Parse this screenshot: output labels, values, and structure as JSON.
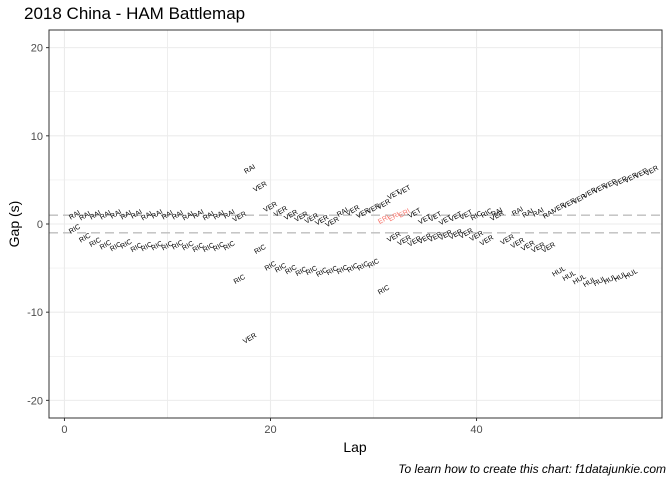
{
  "chart_data": {
    "type": "scatter",
    "title": "2018 China - HAM Battlemap",
    "caption": "To learn how to create this chart: f1datajunkie.com",
    "xlabel": "Lap",
    "ylabel": "Gap (s)",
    "xlim": [
      -1.5,
      58
    ],
    "ylim": [
      -22,
      22
    ],
    "x_ticks": [
      0,
      20,
      40
    ],
    "y_ticks": [
      -20,
      -10,
      0,
      10,
      20
    ],
    "grid": true,
    "reference_lines": [
      1,
      -1
    ],
    "colors": {
      "default": "#000000",
      "highlight": "#f8766d",
      "reference": "#bebebe",
      "grid": "#ebebeb",
      "panel_border": "#333333"
    },
    "series": [
      {
        "name": "RAI",
        "points": [
          [
            1,
            1.0
          ],
          [
            2,
            0.9
          ],
          [
            3,
            1.0
          ],
          [
            4,
            1.0
          ],
          [
            5,
            1.1
          ],
          [
            6,
            1.0
          ],
          [
            7,
            1.1
          ],
          [
            8,
            0.9
          ],
          [
            9,
            1.1
          ],
          [
            10,
            1.0
          ],
          [
            11,
            1.0
          ],
          [
            12,
            0.9
          ],
          [
            13,
            1.1
          ],
          [
            14,
            0.9
          ],
          [
            15,
            1.0
          ],
          [
            16,
            1.1
          ],
          [
            18,
            6.2
          ],
          [
            27,
            1.3
          ],
          [
            42,
            1.3
          ],
          [
            44,
            1.4
          ],
          [
            45,
            1.2
          ],
          [
            46,
            1.3
          ],
          [
            47,
            1.1
          ]
        ]
      },
      {
        "name": "RIC",
        "points": [
          [
            1,
            -0.6
          ],
          [
            2,
            -1.6
          ],
          [
            3,
            -2.1
          ],
          [
            4,
            -2.4
          ],
          [
            5,
            -2.6
          ],
          [
            6,
            -2.3
          ],
          [
            7,
            -2.7
          ],
          [
            8,
            -2.6
          ],
          [
            9,
            -2.5
          ],
          [
            10,
            -2.5
          ],
          [
            11,
            -2.4
          ],
          [
            12,
            -2.5
          ],
          [
            13,
            -2.7
          ],
          [
            14,
            -2.7
          ],
          [
            15,
            -2.6
          ],
          [
            16,
            -2.5
          ],
          [
            17,
            -6.3
          ],
          [
            19,
            -2.9
          ],
          [
            20,
            -4.8
          ],
          [
            21,
            -5.0
          ],
          [
            22,
            -5.2
          ],
          [
            23,
            -5.4
          ],
          [
            24,
            -5.3
          ],
          [
            25,
            -5.5
          ],
          [
            26,
            -5.3
          ],
          [
            27,
            -5.2
          ],
          [
            28,
            -5.0
          ],
          [
            29,
            -4.8
          ],
          [
            30,
            -4.5
          ],
          [
            31,
            -7.5
          ],
          [
            40,
            0.9
          ],
          [
            41,
            1.2
          ]
        ]
      },
      {
        "name": "VER",
        "points": [
          [
            17,
            0.8
          ],
          [
            18,
            -13.0
          ],
          [
            19,
            4.2
          ],
          [
            20,
            1.9
          ],
          [
            21,
            1.4
          ],
          [
            22,
            1.0
          ],
          [
            23,
            0.8
          ],
          [
            24,
            0.6
          ],
          [
            25,
            0.4
          ],
          [
            26,
            0.2
          ],
          [
            28,
            1.5
          ],
          [
            29,
            1.2
          ],
          [
            30,
            1.7
          ],
          [
            31,
            2.2
          ],
          [
            32,
            -1.5
          ],
          [
            33,
            -1.9
          ],
          [
            34,
            -2.0
          ],
          [
            35,
            -1.7
          ],
          [
            36,
            -1.5
          ],
          [
            37,
            -1.3
          ],
          [
            38,
            -1.2
          ],
          [
            39,
            -1.1
          ],
          [
            40,
            -1.4
          ],
          [
            41,
            -1.9
          ],
          [
            42,
            0.9
          ],
          [
            43,
            -1.8
          ],
          [
            44,
            -2.2
          ],
          [
            45,
            -2.5
          ],
          [
            46,
            -2.7
          ],
          [
            47,
            -2.7
          ],
          [
            48,
            1.8
          ],
          [
            49,
            2.3
          ],
          [
            50,
            2.8
          ],
          [
            51,
            3.5
          ],
          [
            52,
            4.0
          ],
          [
            53,
            4.5
          ],
          [
            54,
            4.8
          ],
          [
            55,
            5.2
          ],
          [
            56,
            5.7
          ],
          [
            57,
            6.0
          ]
        ]
      },
      {
        "name": "VET",
        "points": [
          [
            32,
            3.3
          ],
          [
            33,
            3.8
          ],
          [
            34,
            1.2
          ],
          [
            35,
            0.5
          ],
          [
            36,
            0.8
          ],
          [
            37,
            0.4
          ],
          [
            38,
            0.8
          ],
          [
            39,
            1.0
          ]
        ]
      },
      {
        "name": "ERI",
        "highlight": true,
        "points": [
          [
            31,
            0.5
          ],
          [
            32,
            0.8
          ],
          [
            33,
            1.2
          ]
        ]
      },
      {
        "name": "HUL",
        "points": [
          [
            48,
            -5.4
          ],
          [
            49,
            -5.9
          ],
          [
            50,
            -6.3
          ],
          [
            51,
            -6.6
          ],
          [
            52,
            -6.5
          ],
          [
            53,
            -6.3
          ],
          [
            54,
            -6.0
          ],
          [
            55,
            -5.7
          ]
        ]
      }
    ]
  }
}
